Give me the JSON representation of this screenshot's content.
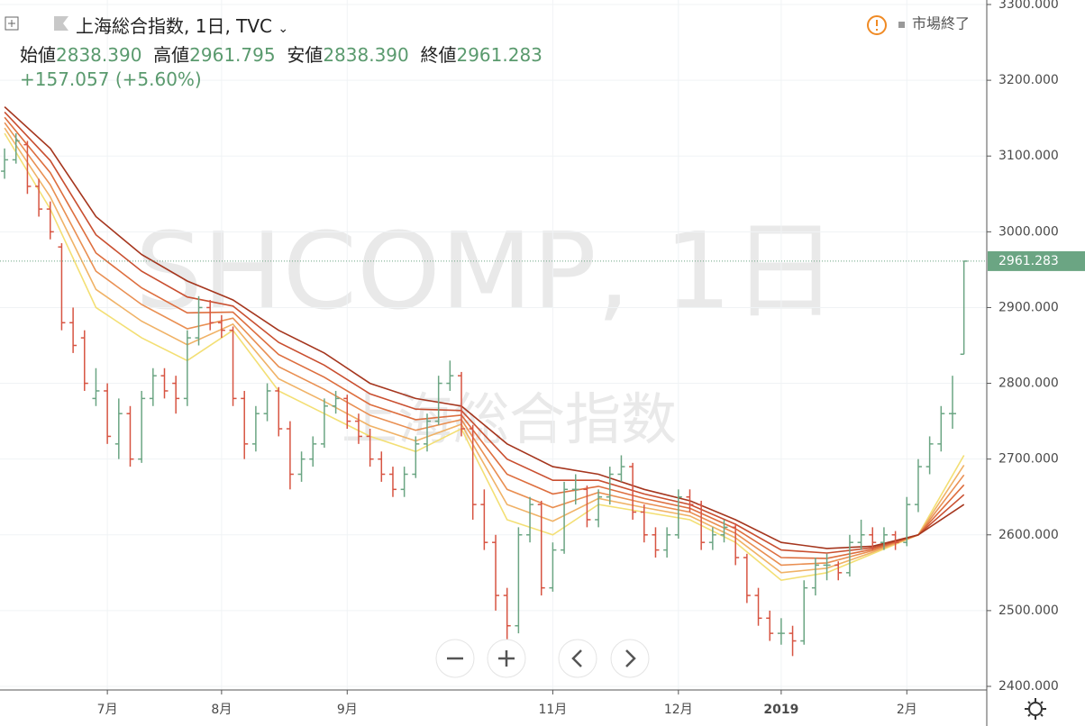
{
  "header": {
    "title": "上海総合指数, 1日, TVC",
    "status": "市場終了",
    "open": {
      "label": "始値",
      "value": "2838.390"
    },
    "high": {
      "label": "高値",
      "value": "2961.795"
    },
    "low": {
      "label": "安値",
      "value": "2838.390"
    },
    "close": {
      "label": "終値",
      "value": "2961.283"
    },
    "change": "+157.057 (+5.60%)"
  },
  "chart_data": {
    "type": "ohlc",
    "watermark": "SHCOMP, 1日",
    "watermark_sub": "上海総合指数",
    "up_color": "#6ba583",
    "down_color": "#d75442",
    "ylim": [
      2400,
      3300
    ],
    "xlim": [
      -0.4,
      86
    ],
    "yticks": [
      {
        "value": 2400,
        "label": "2400.000"
      },
      {
        "value": 2500,
        "label": "2500.000"
      },
      {
        "value": 2600,
        "label": "2600.000"
      },
      {
        "value": 2700,
        "label": "2700.000"
      },
      {
        "value": 2800,
        "label": "2800.000"
      },
      {
        "value": 2900,
        "label": "2900.000"
      },
      {
        "value": 3000,
        "label": "3000.000"
      },
      {
        "value": 3100,
        "label": "3100.000"
      },
      {
        "value": 3200,
        "label": "3200.000"
      },
      {
        "value": 3300,
        "label": "3300.000"
      }
    ],
    "xticks": [
      {
        "value": 9,
        "label": "7月"
      },
      {
        "value": 19,
        "label": "8月"
      },
      {
        "value": 30,
        "label": "9月"
      },
      {
        "value": 48,
        "label": "11月"
      },
      {
        "value": 59,
        "label": "12月"
      },
      {
        "value": 68,
        "label": "2019"
      },
      {
        "value": 79,
        "label": "2月"
      }
    ],
    "last_price": {
      "value": 2961.283,
      "label": "2961.283"
    },
    "ohlc": [
      [
        3080,
        3110,
        3070,
        3095
      ],
      [
        3095,
        3130,
        3090,
        3120
      ],
      [
        3115,
        3120,
        3050,
        3060
      ],
      [
        3060,
        3070,
        3020,
        3030
      ],
      [
        3030,
        3040,
        2990,
        3000
      ],
      [
        2980,
        2985,
        2870,
        2880
      ],
      [
        2880,
        2900,
        2840,
        2850
      ],
      [
        2860,
        2870,
        2790,
        2800
      ],
      [
        2780,
        2820,
        2770,
        2790
      ],
      [
        2790,
        2800,
        2720,
        2730
      ],
      [
        2720,
        2780,
        2700,
        2760
      ],
      [
        2760,
        2770,
        2690,
        2700
      ],
      [
        2700,
        2790,
        2695,
        2780
      ],
      [
        2780,
        2820,
        2770,
        2810
      ],
      [
        2810,
        2820,
        2780,
        2790
      ],
      [
        2800,
        2810,
        2760,
        2780
      ],
      [
        2780,
        2870,
        2770,
        2860
      ],
      [
        2860,
        2915,
        2850,
        2900
      ],
      [
        2900,
        2910,
        2870,
        2880
      ],
      [
        2880,
        2890,
        2860,
        2870
      ],
      [
        2870,
        2875,
        2770,
        2780
      ],
      [
        2780,
        2790,
        2700,
        2720
      ],
      [
        2720,
        2770,
        2710,
        2760
      ],
      [
        2760,
        2800,
        2750,
        2790
      ],
      [
        2790,
        2795,
        2730,
        2740
      ],
      [
        2740,
        2750,
        2660,
        2680
      ],
      [
        2680,
        2710,
        2670,
        2700
      ],
      [
        2700,
        2730,
        2690,
        2720
      ],
      [
        2720,
        2780,
        2715,
        2770
      ],
      [
        2770,
        2790,
        2760,
        2780
      ],
      [
        2780,
        2785,
        2740,
        2750
      ],
      [
        2750,
        2760,
        2720,
        2730
      ],
      [
        2730,
        2740,
        2690,
        2700
      ],
      [
        2700,
        2710,
        2670,
        2680
      ],
      [
        2680,
        2690,
        2650,
        2660
      ],
      [
        2660,
        2690,
        2650,
        2680
      ],
      [
        2680,
        2730,
        2675,
        2720
      ],
      [
        2720,
        2760,
        2710,
        2750
      ],
      [
        2750,
        2810,
        2745,
        2800
      ],
      [
        2800,
        2830,
        2790,
        2810
      ],
      [
        2810,
        2815,
        2730,
        2740
      ],
      [
        2740,
        2745,
        2620,
        2640
      ],
      [
        2640,
        2660,
        2580,
        2590
      ],
      [
        2590,
        2600,
        2500,
        2520
      ],
      [
        2520,
        2530,
        2450,
        2480
      ],
      [
        2480,
        2610,
        2470,
        2600
      ],
      [
        2600,
        2650,
        2590,
        2640
      ],
      [
        2640,
        2645,
        2520,
        2530
      ],
      [
        2530,
        2590,
        2525,
        2580
      ],
      [
        2580,
        2670,
        2575,
        2660
      ],
      [
        2660,
        2680,
        2640,
        2660
      ],
      [
        2660,
        2665,
        2610,
        2620
      ],
      [
        2620,
        2660,
        2610,
        2650
      ],
      [
        2650,
        2690,
        2640,
        2680
      ],
      [
        2680,
        2705,
        2670,
        2690
      ],
      [
        2690,
        2695,
        2620,
        2630
      ],
      [
        2630,
        2640,
        2590,
        2600
      ],
      [
        2600,
        2610,
        2570,
        2580
      ],
      [
        2580,
        2610,
        2570,
        2600
      ],
      [
        2600,
        2660,
        2595,
        2650
      ],
      [
        2650,
        2660,
        2630,
        2640
      ],
      [
        2640,
        2645,
        2580,
        2590
      ],
      [
        2590,
        2610,
        2580,
        2600
      ],
      [
        2600,
        2620,
        2590,
        2610
      ],
      [
        2610,
        2615,
        2560,
        2570
      ],
      [
        2570,
        2575,
        2510,
        2520
      ],
      [
        2520,
        2530,
        2480,
        2490
      ],
      [
        2490,
        2500,
        2460,
        2470
      ],
      [
        2470,
        2490,
        2455,
        2470
      ],
      [
        2470,
        2480,
        2440,
        2460
      ],
      [
        2460,
        2540,
        2455,
        2530
      ],
      [
        2530,
        2570,
        2520,
        2560
      ],
      [
        2560,
        2575,
        2540,
        2560
      ],
      [
        2560,
        2565,
        2540,
        2550
      ],
      [
        2550,
        2600,
        2545,
        2590
      ],
      [
        2590,
        2620,
        2580,
        2600
      ],
      [
        2600,
        2610,
        2580,
        2590
      ],
      [
        2590,
        2610,
        2580,
        2600
      ],
      [
        2600,
        2605,
        2580,
        2590
      ],
      [
        2590,
        2650,
        2585,
        2640
      ],
      [
        2640,
        2700,
        2630,
        2690
      ],
      [
        2690,
        2730,
        2680,
        2720
      ],
      [
        2720,
        2770,
        2710,
        2760
      ],
      [
        2760,
        2810,
        2740,
        2760
      ],
      [
        2838.39,
        2961.795,
        2838.39,
        2961.283
      ]
    ],
    "ma_x": [
      0,
      4,
      8,
      12,
      16,
      20,
      24,
      28,
      32,
      36,
      40,
      44,
      48,
      52,
      56,
      60,
      64,
      68,
      72,
      76,
      80,
      84
    ],
    "series": [
      {
        "color": "#a5361e",
        "values": [
          3165,
          3110,
          3020,
          2970,
          2935,
          2910,
          2870,
          2840,
          2800,
          2780,
          2770,
          2720,
          2690,
          2680,
          2660,
          2645,
          2620,
          2590,
          2582,
          2585,
          2600,
          2640
        ]
      },
      {
        "color": "#c94f30",
        "values": [
          3158,
          3094,
          2996,
          2948,
          2914,
          2902,
          2854,
          2824,
          2786,
          2766,
          2764,
          2700,
          2672,
          2672,
          2654,
          2640,
          2614,
          2580,
          2576,
          2583,
          2600,
          2653
        ]
      },
      {
        "color": "#dd6e3e",
        "values": [
          3151,
          3078,
          2972,
          2926,
          2893,
          2894,
          2838,
          2808,
          2772,
          2752,
          2758,
          2680,
          2654,
          2664,
          2648,
          2635,
          2608,
          2570,
          2569,
          2581,
          2600,
          2666
        ]
      },
      {
        "color": "#e98f52",
        "values": [
          3144,
          3062,
          2948,
          2904,
          2872,
          2886,
          2822,
          2792,
          2758,
          2738,
          2752,
          2660,
          2636,
          2656,
          2642,
          2630,
          2602,
          2560,
          2563,
          2579,
          2600,
          2679
        ]
      },
      {
        "color": "#f0b266",
        "values": [
          3137,
          3046,
          2924,
          2882,
          2851,
          2878,
          2806,
          2776,
          2744,
          2724,
          2746,
          2640,
          2618,
          2648,
          2636,
          2625,
          2596,
          2550,
          2556,
          2577,
          2600,
          2692
        ]
      },
      {
        "color": "#f3df74",
        "values": [
          3130,
          3030,
          2900,
          2860,
          2830,
          2870,
          2790,
          2760,
          2730,
          2710,
          2740,
          2620,
          2600,
          2640,
          2630,
          2620,
          2590,
          2540,
          2550,
          2575,
          2600,
          2705
        ]
      }
    ]
  }
}
